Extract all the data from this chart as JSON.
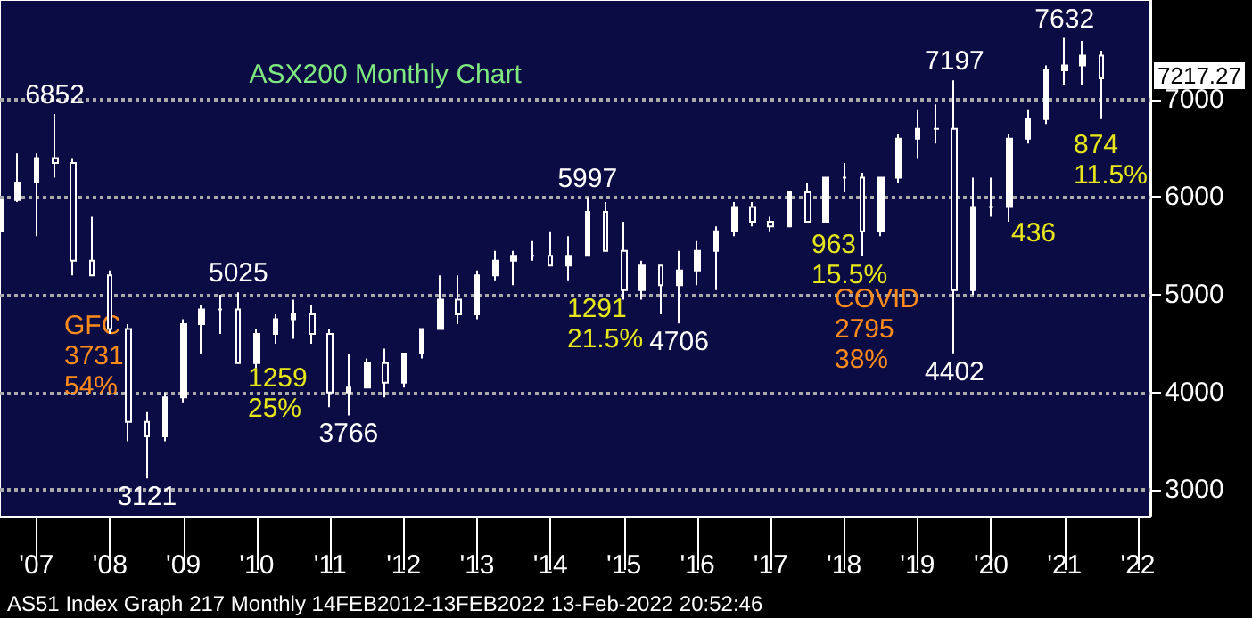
{
  "chart_data": {
    "type": "candlestick",
    "title": "ASX200 Monthly Chart",
    "x": [
      "2007-01",
      "2007-04",
      "2007-07",
      "2007-10",
      "2008-01",
      "2008-04",
      "2008-07",
      "2008-10",
      "2009-01",
      "2009-04",
      "2009-07",
      "2009-10",
      "2010-01",
      "2010-04",
      "2010-07",
      "2010-10",
      "2011-01",
      "2011-04",
      "2011-07",
      "2011-10",
      "2012-01",
      "2012-04",
      "2012-07",
      "2012-10",
      "2013-01",
      "2013-04",
      "2013-07",
      "2013-10",
      "2014-01",
      "2014-04",
      "2014-07",
      "2014-10",
      "2015-01",
      "2015-04",
      "2015-07",
      "2015-10",
      "2016-01",
      "2016-04",
      "2016-07",
      "2016-10",
      "2017-01",
      "2017-04",
      "2017-07",
      "2017-10",
      "2018-01",
      "2018-04",
      "2018-07",
      "2018-10",
      "2019-01",
      "2019-04",
      "2019-07",
      "2019-10",
      "2020-01",
      "2020-04",
      "2020-07",
      "2020-10",
      "2021-01",
      "2021-04",
      "2021-07",
      "2021-10",
      "2022-01"
    ],
    "ohlc": [
      [
        5650,
        6000,
        5500,
        5970
      ],
      [
        5970,
        6450,
        5950,
        6150
      ],
      [
        6150,
        6450,
        5600,
        6400
      ],
      [
        6400,
        6852,
        6200,
        6350
      ],
      [
        6350,
        6400,
        5200,
        5350
      ],
      [
        5350,
        5800,
        5200,
        5200
      ],
      [
        5200,
        5250,
        4600,
        4650
      ],
      [
        4650,
        4700,
        3500,
        3700
      ],
      [
        3700,
        3800,
        3121,
        3550
      ],
      [
        3550,
        4000,
        3500,
        3950
      ],
      [
        3950,
        4750,
        3900,
        4700
      ],
      [
        4700,
        4900,
        4400,
        4850
      ],
      [
        4850,
        5000,
        4600,
        4850
      ],
      [
        4850,
        5025,
        4300,
        4300
      ],
      [
        4300,
        4650,
        4250,
        4600
      ],
      [
        4600,
        4800,
        4500,
        4750
      ],
      [
        4750,
        4950,
        4550,
        4800
      ],
      [
        4800,
        4900,
        4500,
        4600
      ],
      [
        4600,
        4650,
        3850,
        4000
      ],
      [
        4000,
        4400,
        3766,
        4050
      ],
      [
        4050,
        4350,
        4050,
        4300
      ],
      [
        4300,
        4450,
        3950,
        4100
      ],
      [
        4100,
        4400,
        4050,
        4400
      ],
      [
        4400,
        4650,
        4350,
        4650
      ],
      [
        4650,
        5200,
        4650,
        4950
      ],
      [
        4950,
        5200,
        4700,
        4800
      ],
      [
        4800,
        5250,
        4750,
        5200
      ],
      [
        5200,
        5450,
        5150,
        5350
      ],
      [
        5350,
        5450,
        5100,
        5400
      ],
      [
        5400,
        5550,
        5350,
        5400
      ],
      [
        5400,
        5650,
        5300,
        5300
      ],
      [
        5300,
        5600,
        5150,
        5400
      ],
      [
        5400,
        5997,
        5400,
        5850
      ],
      [
        5850,
        5950,
        5450,
        5450
      ],
      [
        5450,
        5750,
        4950,
        5050
      ],
      [
        5050,
        5350,
        4950,
        5300
      ],
      [
        5300,
        5300,
        4800,
        5100
      ],
      [
        5100,
        5450,
        4706,
        5250
      ],
      [
        5250,
        5550,
        5100,
        5450
      ],
      [
        5450,
        5700,
        5050,
        5650
      ],
      [
        5650,
        5950,
        5600,
        5900
      ],
      [
        5900,
        5950,
        5700,
        5750
      ],
      [
        5750,
        5800,
        5650,
        5700
      ],
      [
        5700,
        6050,
        5700,
        6050
      ],
      [
        6050,
        6150,
        5750,
        5750
      ],
      [
        5750,
        6200,
        5750,
        6200
      ],
      [
        6200,
        6350,
        6050,
        6200
      ],
      [
        6200,
        6250,
        5400,
        5650
      ],
      [
        5650,
        6200,
        5600,
        6200
      ],
      [
        6200,
        6650,
        6150,
        6600
      ],
      [
        6600,
        6900,
        6400,
        6700
      ],
      [
        6700,
        6950,
        6550,
        6700
      ],
      [
        6700,
        7197,
        4402,
        5050
      ],
      [
        5050,
        6200,
        5000,
        5900
      ],
      [
        5900,
        6200,
        5800,
        5900
      ],
      [
        5900,
        6650,
        5750,
        6600
      ],
      [
        6600,
        6900,
        6550,
        6800
      ],
      [
        6800,
        7350,
        6750,
        7300
      ],
      [
        7300,
        7632,
        7150,
        7350
      ],
      [
        7350,
        7600,
        7150,
        7450
      ],
      [
        7450,
        7500,
        6800,
        7217.27
      ]
    ],
    "color": "#ffffff",
    "xlim": [
      "2007-01",
      "2022-09"
    ],
    "xticks": [
      {
        "value": "2007-07",
        "label": "'07"
      },
      {
        "value": "2008-07",
        "label": "'08"
      },
      {
        "value": "2009-07",
        "label": "'09"
      },
      {
        "value": "2010-07",
        "label": "'10"
      },
      {
        "value": "2011-07",
        "label": "'11"
      },
      {
        "value": "2012-07",
        "label": "'12"
      },
      {
        "value": "2013-07",
        "label": "'13"
      },
      {
        "value": "2014-07",
        "label": "'14"
      },
      {
        "value": "2015-07",
        "label": "'15"
      },
      {
        "value": "2016-07",
        "label": "'16"
      },
      {
        "value": "2017-07",
        "label": "'17"
      },
      {
        "value": "2018-07",
        "label": "'18"
      },
      {
        "value": "2019-07",
        "label": "'19"
      },
      {
        "value": "2020-07",
        "label": "'20"
      },
      {
        "value": "2021-07",
        "label": "'21"
      },
      {
        "value": "2022-07",
        "label": "'22"
      }
    ],
    "ylim": [
      2730,
      8020
    ],
    "yticks": [
      3000,
      4000,
      5000,
      6000,
      7000
    ],
    "grid": "y",
    "annotations": [
      {
        "text": "6852",
        "x": "2007-10",
        "y": 6852
      },
      {
        "text": "3121",
        "x": "2009-01",
        "y": 3121
      },
      {
        "text": "5025",
        "x": "2010-04",
        "y": 5025
      },
      {
        "text": "3766",
        "x": "2011-10",
        "y": 3766
      },
      {
        "text": "5997",
        "x": "2015-01",
        "y": 5997
      },
      {
        "text": "4706",
        "x": "2016-04",
        "y": 4706
      },
      {
        "text": "7197",
        "x": "2020-01",
        "y": 7197
      },
      {
        "text": "4402",
        "x": "2020-01",
        "y": 4402
      },
      {
        "text": "7632",
        "x": "2021-07",
        "y": 7632
      },
      {
        "text": "7217.27",
        "x": "2022-01",
        "y": 7217.27
      },
      "GFC\n3731\n54%",
      "1259\n25%",
      "1291\n21.5%",
      "963\n15.5%",
      "COVID\n2795\n38%",
      "436",
      "874\n11.5%",
      "AS51 Index Graph 217 Monthly 14FEB2012-13FEB2022 13-Feb-2022 20:52:46"
    ]
  }
}
